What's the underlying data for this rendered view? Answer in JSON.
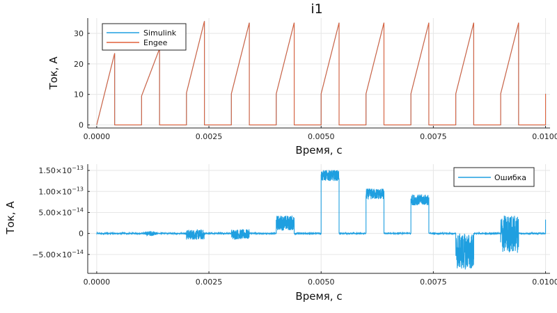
{
  "chart_data": [
    {
      "type": "line",
      "title": "i1",
      "xlabel": "Время, с",
      "ylabel": "Ток, А",
      "xlim": [
        -0.0002,
        0.0101
      ],
      "ylim": [
        -1,
        35
      ],
      "xticks": [
        0,
        0.0025,
        0.005,
        0.0075,
        0.01
      ],
      "xtick_labels": [
        "0.0000",
        "0.0025",
        "0.0050",
        "0.0075",
        "0.0100"
      ],
      "yticks": [
        0,
        10,
        20,
        30
      ],
      "ytick_labels": [
        "0",
        "10",
        "20",
        "30"
      ],
      "grid": true,
      "legend_position": "top-left",
      "series": [
        {
          "name": "Simulink",
          "color": "#1f9fe0",
          "x": [
            0.0,
            0.0004,
            0.0004,
            0.001,
            0.001,
            0.0014,
            0.0014,
            0.002,
            0.002,
            0.0024,
            0.0024,
            0.003,
            0.003,
            0.0034,
            0.0034,
            0.004,
            0.004,
            0.0044,
            0.0044,
            0.005,
            0.005,
            0.0054,
            0.0054,
            0.006,
            0.006,
            0.0064,
            0.0064,
            0.007,
            0.007,
            0.0074,
            0.0074,
            0.008,
            0.008,
            0.0084,
            0.0084,
            0.009,
            0.009,
            0.0094,
            0.0094,
            0.01,
            0.01
          ],
          "y": [
            0,
            23.5,
            0,
            0,
            9.5,
            25,
            0,
            0,
            10.5,
            34,
            0,
            0,
            10.2,
            33.5,
            0,
            0,
            10.2,
            33.5,
            0,
            0,
            10.2,
            33.5,
            0,
            0,
            10.2,
            33.5,
            0,
            0,
            10.2,
            33.5,
            0,
            0,
            10.2,
            33.5,
            0,
            0,
            10.2,
            33.5,
            0,
            0,
            10.2
          ]
        },
        {
          "name": "Engee",
          "color": "#e0613a",
          "x": [
            0.0,
            0.0004,
            0.0004,
            0.001,
            0.001,
            0.0014,
            0.0014,
            0.002,
            0.002,
            0.0024,
            0.0024,
            0.003,
            0.003,
            0.0034,
            0.0034,
            0.004,
            0.004,
            0.0044,
            0.0044,
            0.005,
            0.005,
            0.0054,
            0.0054,
            0.006,
            0.006,
            0.0064,
            0.0064,
            0.007,
            0.007,
            0.0074,
            0.0074,
            0.008,
            0.008,
            0.0084,
            0.0084,
            0.009,
            0.009,
            0.0094,
            0.0094,
            0.01,
            0.01
          ],
          "y": [
            0,
            23.5,
            0,
            0,
            9.5,
            25,
            0,
            0,
            10.5,
            34,
            0,
            0,
            10.2,
            33.5,
            0,
            0,
            10.2,
            33.5,
            0,
            0,
            10.2,
            33.5,
            0,
            0,
            10.2,
            33.5,
            0,
            0,
            10.2,
            33.5,
            0,
            0,
            10.2,
            33.5,
            0,
            0,
            10.2,
            33.5,
            0,
            0,
            10.2
          ]
        }
      ]
    },
    {
      "type": "line",
      "title": "",
      "xlabel": "Время, с",
      "ylabel": "Ток, А",
      "xlim": [
        -0.0002,
        0.0101
      ],
      "ylim": [
        -9.5e-14,
        1.65e-13
      ],
      "xticks": [
        0,
        0.0025,
        0.005,
        0.0075,
        0.01
      ],
      "xtick_labels": [
        "0.0000",
        "0.0025",
        "0.0050",
        "0.0075",
        "0.0100"
      ],
      "yticks": [
        -5e-14,
        0,
        5e-14,
        1e-13,
        1.5e-13
      ],
      "ytick_labels": [
        {
          "mantissa": "−5.00",
          "exponent": "−14"
        },
        {
          "plain": "0"
        },
        {
          "mantissa": "5.00",
          "exponent": "−14"
        },
        {
          "mantissa": "1.00",
          "exponent": "−13"
        },
        {
          "mantissa": "1.50",
          "exponent": "−13"
        }
      ],
      "grid": true,
      "legend_position": "top-right",
      "series": [
        {
          "name": "Ошибка",
          "color": "#1f9fe0",
          "segments": [
            {
              "x0": 0.0,
              "x1": 0.001,
              "mean": 0,
              "amp": 1.5e-15
            },
            {
              "x0": 0.001,
              "x1": 0.0014,
              "mean": 0,
              "amp": 6e-15
            },
            {
              "x0": 0.0014,
              "x1": 0.002,
              "mean": 0,
              "amp": 1.5e-15
            },
            {
              "x0": 0.002,
              "x1": 0.0024,
              "mean": -3e-15,
              "amp": 1.2e-14
            },
            {
              "x0": 0.0024,
              "x1": 0.003,
              "mean": 0,
              "amp": 1.5e-15
            },
            {
              "x0": 0.003,
              "x1": 0.0034,
              "mean": -2e-15,
              "amp": 1.2e-14
            },
            {
              "x0": 0.0034,
              "x1": 0.004,
              "mean": 0,
              "amp": 1.5e-15
            },
            {
              "x0": 0.004,
              "x1": 0.0044,
              "mean": 2.5e-14,
              "amp": 1.8e-14
            },
            {
              "x0": 0.0044,
              "x1": 0.005,
              "mean": 0,
              "amp": 1.5e-15
            },
            {
              "x0": 0.005,
              "x1": 0.0054,
              "mean": 1.38e-13,
              "amp": 1.3e-14
            },
            {
              "x0": 0.0054,
              "x1": 0.006,
              "mean": 0,
              "amp": 1.5e-15
            },
            {
              "x0": 0.006,
              "x1": 0.0064,
              "mean": 9.4e-14,
              "amp": 1.3e-14
            },
            {
              "x0": 0.0064,
              "x1": 0.007,
              "mean": 0,
              "amp": 1.5e-15
            },
            {
              "x0": 0.007,
              "x1": 0.0074,
              "mean": 8e-14,
              "amp": 1.3e-14
            },
            {
              "x0": 0.0074,
              "x1": 0.008,
              "mean": 0,
              "amp": 1.5e-15
            },
            {
              "x0": 0.008,
              "x1": 0.0084,
              "mean": -4.3e-14,
              "amp": 4.3e-14
            },
            {
              "x0": 0.0084,
              "x1": 0.009,
              "mean": 0,
              "amp": 1.5e-15
            },
            {
              "x0": 0.009,
              "x1": 0.0094,
              "mean": -1e-15,
              "amp": 4.5e-14
            },
            {
              "x0": 0.0094,
              "x1": 0.01,
              "mean": 0,
              "amp": 1.5e-15
            }
          ],
          "end_spike": {
            "x": 0.01,
            "y": 3.3e-14
          }
        }
      ]
    }
  ]
}
